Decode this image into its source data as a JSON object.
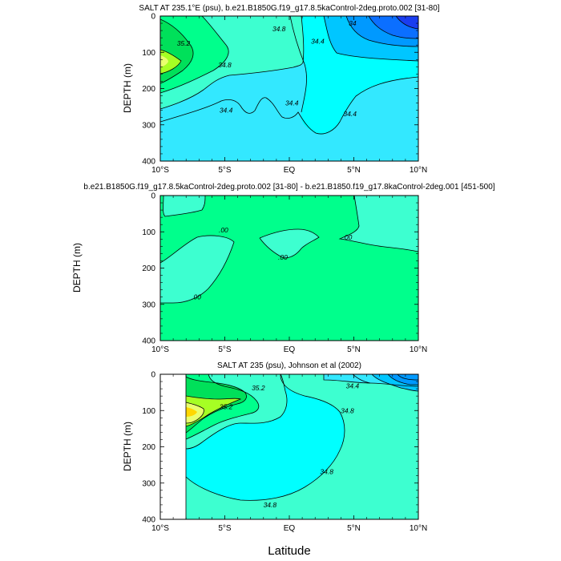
{
  "figure": {
    "xlabel": "Latitude"
  },
  "chart_data": [
    {
      "type": "contour",
      "title": "SALT AT 235.1°E (psu), b.e21.B1850G.f19_g17.8.5kaControl-2deg.proto.002 [31-80]",
      "xlabel": "",
      "ylabel": "DEPTH (m)",
      "xticks": [
        "10°S",
        "5°S",
        "EQ",
        "5°N",
        "10°N"
      ],
      "xlim": [
        -10,
        10
      ],
      "yticks": [
        "0",
        "100",
        "200",
        "300",
        "400"
      ],
      "ylim": [
        400,
        0
      ],
      "contour_labels": [
        {
          "text": "35.2",
          "lat": -8.2,
          "depth": 75
        },
        {
          "text": "34.8",
          "lat": -5.0,
          "depth": 135
        },
        {
          "text": "34.8",
          "lat": -0.8,
          "depth": 35
        },
        {
          "text": "34.4",
          "lat": 2.2,
          "depth": 70
        },
        {
          "text": "34",
          "lat": 4.9,
          "depth": 20
        },
        {
          "text": "34.4",
          "lat": -4.9,
          "depth": 260
        },
        {
          "text": "34.4",
          "lat": 0.2,
          "depth": 240
        },
        {
          "text": "34.4",
          "lat": 4.7,
          "depth": 270
        }
      ]
    },
    {
      "type": "contour",
      "title": "b.e21.B1850G.f19_g17.8.5kaControl-2deg.proto.002 [31-80] - b.e21.B1850.f19_g17.8kaControl-2deg.001 [451-500]",
      "xlabel": "",
      "ylabel": "DEPTH (m)",
      "xticks": [
        "10°S",
        "5°S",
        "EQ",
        "5°N",
        "10°N"
      ],
      "xlim": [
        -10,
        10
      ],
      "yticks": [
        "0",
        "100",
        "200",
        "300",
        "400"
      ],
      "ylim": [
        400,
        0
      ],
      "contour_labels": [
        {
          "text": ".00",
          "lat": -5.1,
          "depth": 95
        },
        {
          "text": ".00",
          "lat": -0.5,
          "depth": 170
        },
        {
          "text": ".00",
          "lat": 4.5,
          "depth": 115
        },
        {
          "text": ".00",
          "lat": -7.2,
          "depth": 280
        }
      ]
    },
    {
      "type": "contour",
      "title": "SALT AT 235 (psu), Johnson et al (2002)",
      "xlabel": "Latitude",
      "ylabel": "DEPTH (m)",
      "xticks": [
        "10°S",
        "5°S",
        "EQ",
        "5°N",
        "10°N"
      ],
      "xlim": [
        -10,
        10
      ],
      "yticks": [
        "0",
        "100",
        "200",
        "300",
        "400"
      ],
      "ylim": [
        400,
        0
      ],
      "contour_labels": [
        {
          "text": "35.2",
          "lat": -2.4,
          "depth": 38
        },
        {
          "text": "35.2",
          "lat": -4.9,
          "depth": 90
        },
        {
          "text": "34.4",
          "lat": 4.9,
          "depth": 32
        },
        {
          "text": "34.8",
          "lat": 4.5,
          "depth": 100
        },
        {
          "text": "34.8",
          "lat": 2.9,
          "depth": 268
        },
        {
          "text": "34.8",
          "lat": -1.5,
          "depth": 360
        }
      ]
    }
  ]
}
